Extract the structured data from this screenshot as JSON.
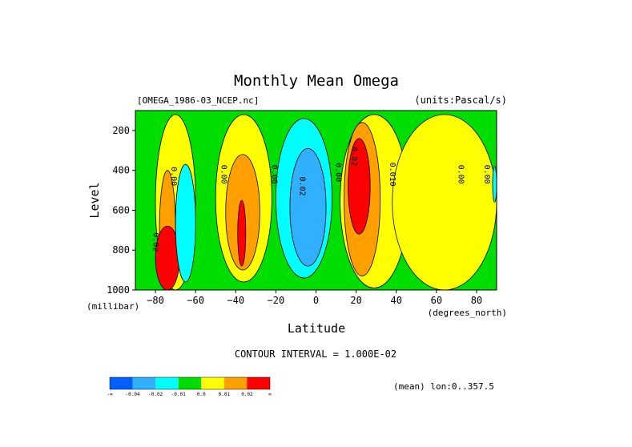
{
  "chart_data": {
    "type": "contour",
    "title": "Monthly Mean Omega",
    "dataset": "[OMEGA_1986-03_NCEP.nc]",
    "units": "(units:Pascal/s)",
    "xlabel": "Latitude",
    "x_units": "(degrees_north)",
    "ylabel": "Level",
    "y_units": "(millibar)",
    "xlim": [
      -90,
      90
    ],
    "ylim": [
      1000,
      100
    ],
    "y_reversed": true,
    "x_ticks": [
      -80,
      -60,
      -40,
      -20,
      0,
      20,
      40,
      60,
      80
    ],
    "y_ticks": [
      200,
      400,
      600,
      800,
      1000
    ],
    "contour_interval_text": "CONTOUR INTERVAL = 1.000E-02",
    "footer_text": "(mean) lon:0..357.5",
    "contour_labels": [
      {
        "text": "0.00",
        "lat": -72,
        "lev": 430
      },
      {
        "text": "0.00",
        "lat": -47,
        "lev": 420
      },
      {
        "text": "0.00",
        "lat": -22,
        "lev": 420
      },
      {
        "text": "0.02",
        "lat": -8,
        "lev": 480
      },
      {
        "text": "0.00",
        "lat": 10,
        "lev": 410
      },
      {
        "text": "0.02",
        "lat": 18,
        "lev": 330
      },
      {
        "text": "0.010",
        "lat": 37,
        "lev": 420
      },
      {
        "text": "0.00",
        "lat": 71,
        "lev": 420
      },
      {
        "text": "0.00",
        "lat": 84,
        "lev": 420
      },
      {
        "text": "0.02",
        "lat": -81,
        "lev": 760
      }
    ],
    "colorbar": {
      "colors": [
        "#0060ff",
        "#30b0ff",
        "#00ffff",
        "#00dd00",
        "#ffff00",
        "#ffa000",
        "#ff0000"
      ],
      "labels": [
        "-∞",
        "-0.04",
        "-0.02",
        "-0.01",
        "0.0",
        "0.01",
        "0.02",
        "∞"
      ]
    },
    "regions": [
      {
        "class": 3,
        "lat_range": [
          -90,
          90
        ],
        "lev_range": [
          100,
          1000
        ],
        "note": "background near zero"
      },
      {
        "class": 4,
        "lat_range": [
          -80,
          -60
        ],
        "lev_range": [
          120,
          1000
        ]
      },
      {
        "class": 5,
        "lat_range": [
          -78,
          -70
        ],
        "lev_range": [
          400,
          1000
        ]
      },
      {
        "class": 6,
        "lat_range": [
          -80,
          -68
        ],
        "lev_range": [
          680,
          1000
        ]
      },
      {
        "class": 2,
        "lat_range": [
          -70,
          -60
        ],
        "lev_range": [
          370,
          960
        ]
      },
      {
        "class": 4,
        "lat_range": [
          -50,
          -22
        ],
        "lev_range": [
          120,
          960
        ]
      },
      {
        "class": 5,
        "lat_range": [
          -45,
          -28
        ],
        "lev_range": [
          320,
          900
        ]
      },
      {
        "class": 6,
        "lat_range": [
          -39,
          -35
        ],
        "lev_range": [
          550,
          880
        ]
      },
      {
        "class": 2,
        "lat_range": [
          -20,
          8
        ],
        "lev_range": [
          140,
          940
        ]
      },
      {
        "class": 1,
        "lat_range": [
          -13,
          5
        ],
        "lev_range": [
          290,
          880
        ]
      },
      {
        "class": 4,
        "lat_range": [
          12,
          46
        ],
        "lev_range": [
          120,
          990
        ]
      },
      {
        "class": 5,
        "lat_range": [
          14,
          32
        ],
        "lev_range": [
          160,
          930
        ]
      },
      {
        "class": 6,
        "lat_range": [
          16,
          27
        ],
        "lev_range": [
          240,
          720
        ]
      },
      {
        "class": 4,
        "lat_range": [
          38,
          90
        ],
        "lev_range": [
          120,
          1000
        ]
      },
      {
        "class": 2,
        "lat_range": [
          88,
          90
        ],
        "lev_range": [
          380,
          560
        ]
      }
    ]
  }
}
